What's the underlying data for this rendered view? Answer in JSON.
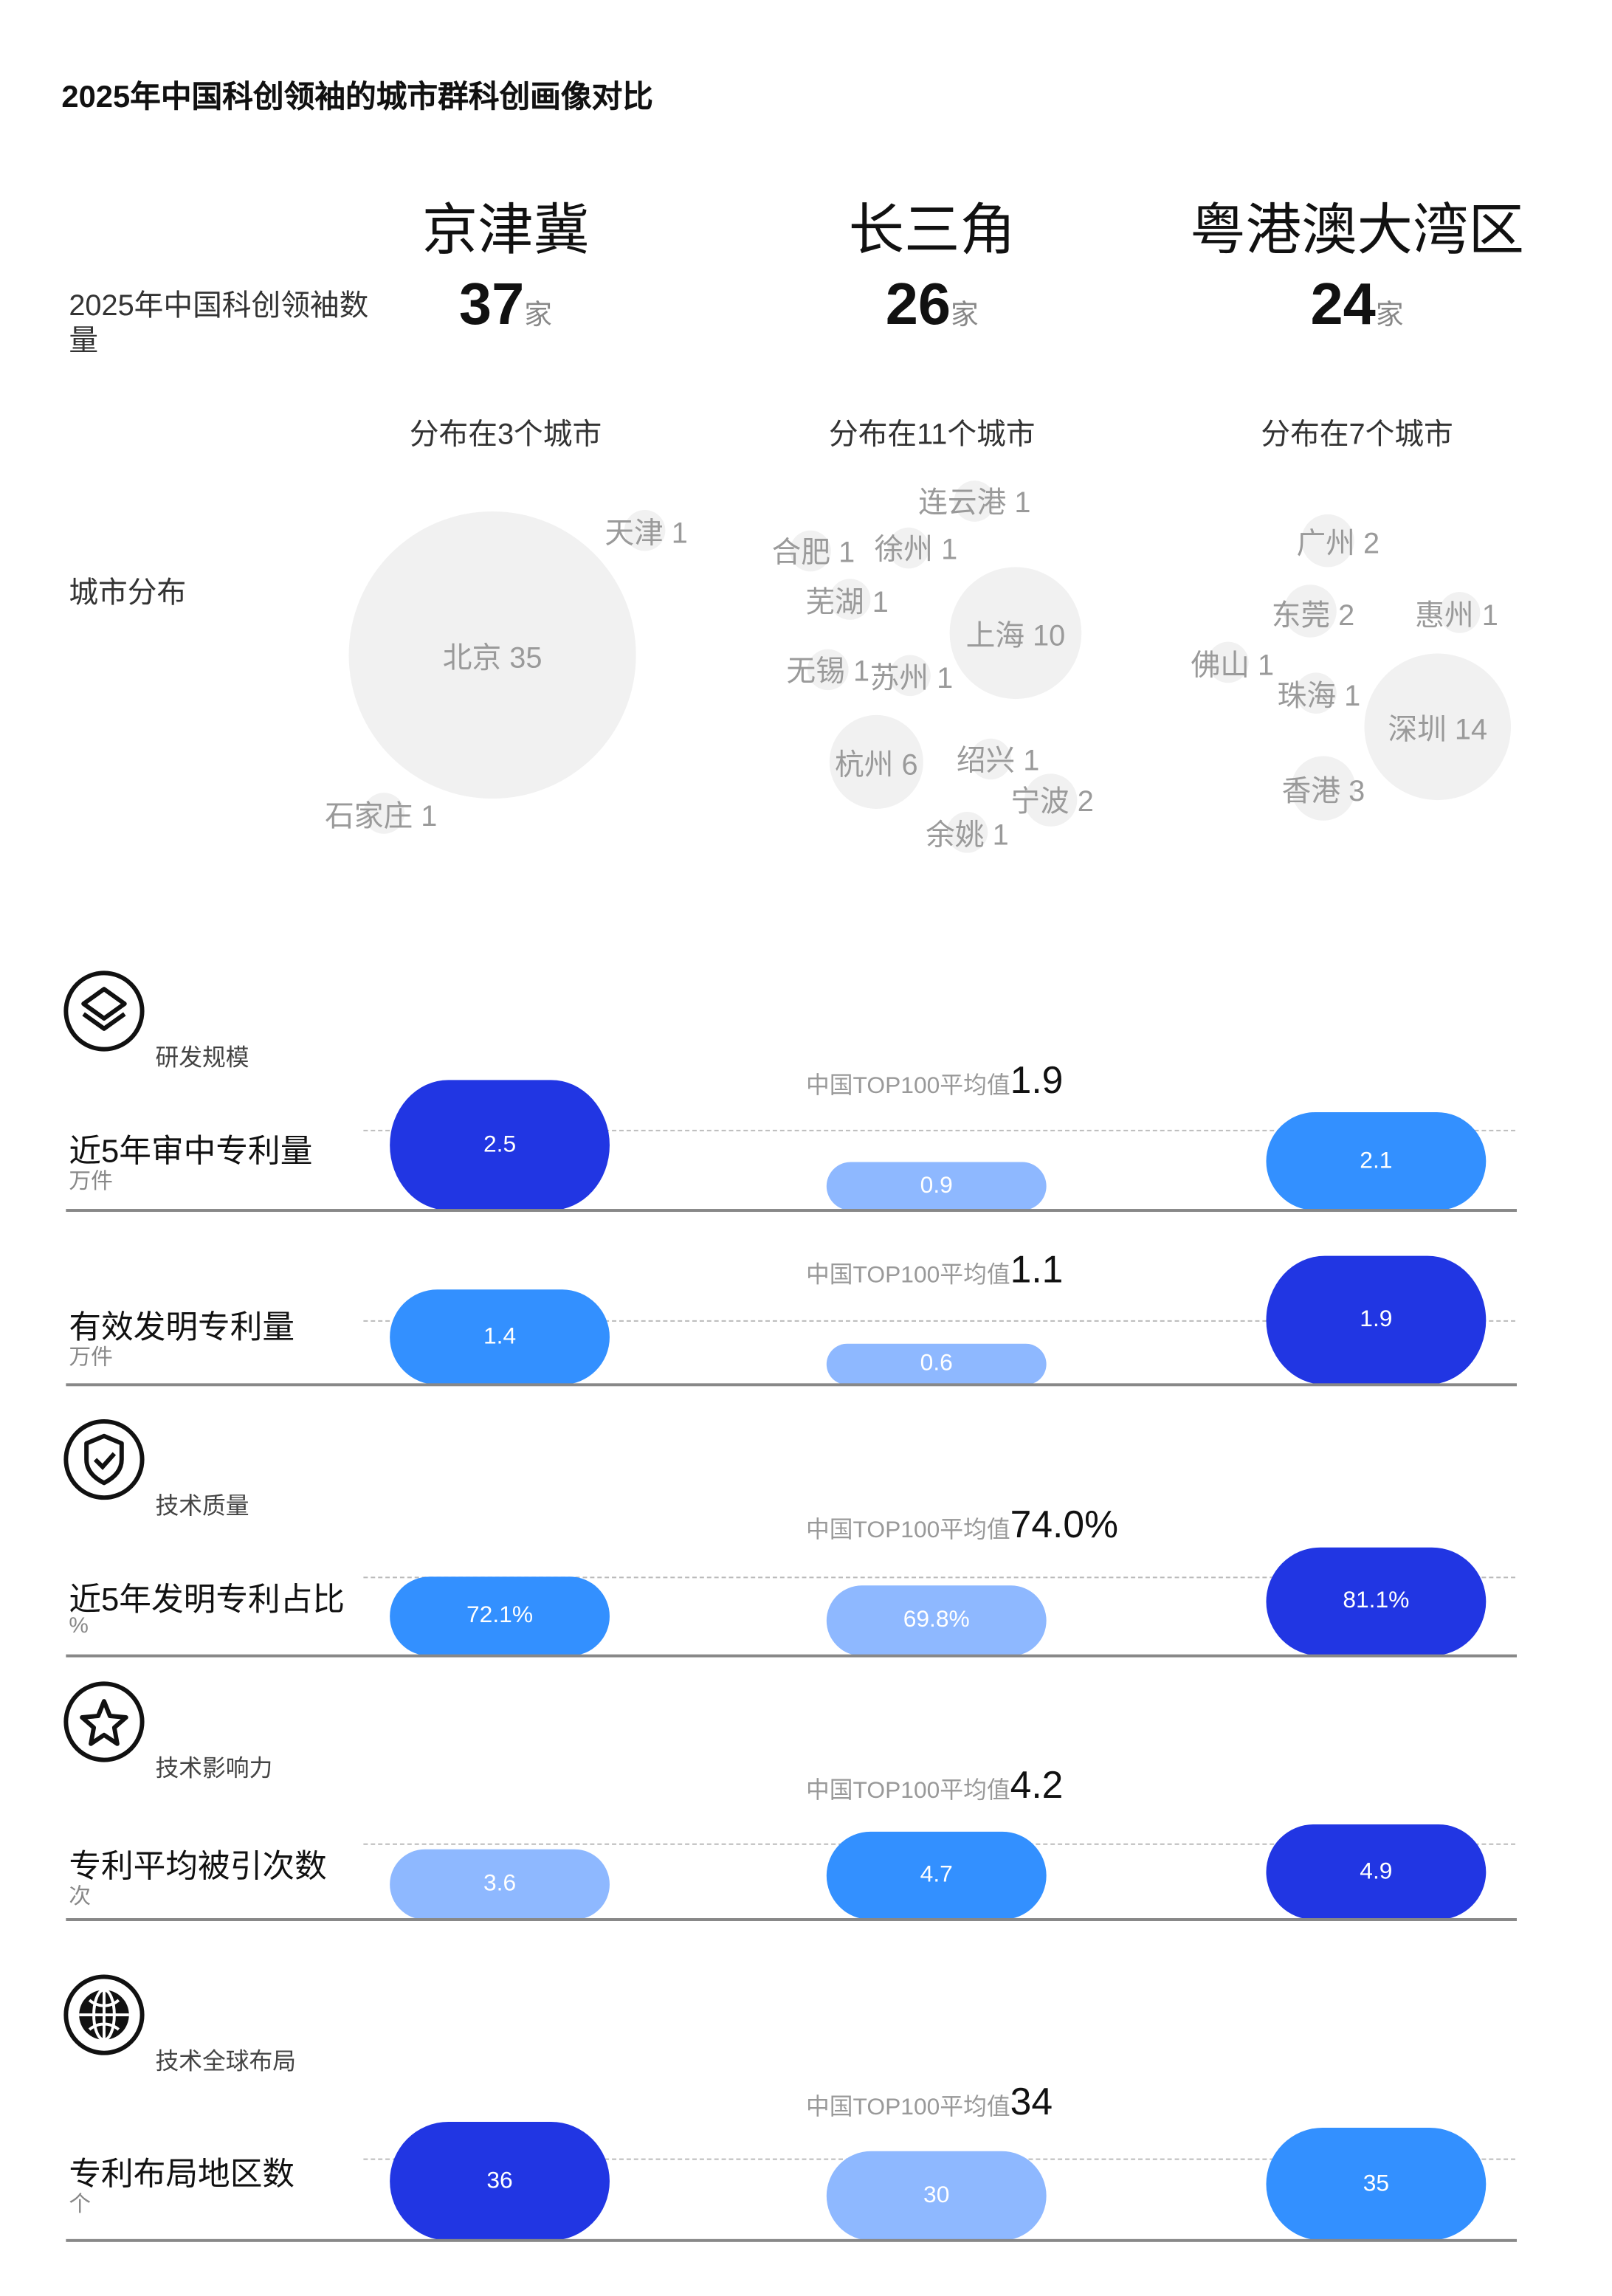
{
  "title": "2025年中国科创领袖的城市群科创画像对比",
  "row_labels": {
    "count": "2025年中国科创领袖数量",
    "distribution": "城市分布"
  },
  "regions": [
    {
      "name": "京津冀",
      "count": "37",
      "unit": "家",
      "summary": "分布在3个城市",
      "cities": [
        {
          "name": "北京",
          "value": 35
        },
        {
          "name": "天津",
          "value": 1
        },
        {
          "name": "石家庄",
          "value": 1
        }
      ]
    },
    {
      "name": "长三角",
      "count": "26",
      "unit": "家",
      "summary": "分布在11个城市",
      "cities": [
        {
          "name": "连云港",
          "value": 1
        },
        {
          "name": "合肥",
          "value": 1
        },
        {
          "name": "徐州",
          "value": 1
        },
        {
          "name": "芜湖",
          "value": 1
        },
        {
          "name": "上海",
          "value": 10
        },
        {
          "name": "无锡",
          "value": 1
        },
        {
          "name": "苏州",
          "value": 1
        },
        {
          "name": "杭州",
          "value": 6
        },
        {
          "name": "绍兴",
          "value": 1
        },
        {
          "name": "宁波",
          "value": 2
        },
        {
          "name": "余姚",
          "value": 1
        }
      ]
    },
    {
      "name": "粤港澳大湾区",
      "count": "24",
      "unit": "家",
      "summary": "分布在7个城市",
      "cities": [
        {
          "name": "广州",
          "value": 2
        },
        {
          "name": "东莞",
          "value": 2
        },
        {
          "name": "惠州",
          "value": 1
        },
        {
          "name": "佛山",
          "value": 1
        },
        {
          "name": "珠海",
          "value": 1
        },
        {
          "name": "深圳",
          "value": 14
        },
        {
          "name": "香港",
          "value": 3
        }
      ]
    }
  ],
  "avg_prefix": "中国TOP100平均值",
  "colors": {
    "highest": "#2136E3",
    "middle": "#3390FF",
    "lowest": "#8EB8FF",
    "bubble": "#F1F1F1"
  },
  "metrics": [
    {
      "category": "研发规模",
      "icon": "layers-icon",
      "title": "近5年审中专利量",
      "unit": "万件",
      "avg": "1.9",
      "values": [
        "2.5",
        "0.9",
        "2.1"
      ]
    },
    {
      "category": "",
      "icon": "",
      "title": "有效发明专利量",
      "unit": "万件",
      "avg": "1.1",
      "values": [
        "1.4",
        "0.6",
        "1.9"
      ]
    },
    {
      "category": "技术质量",
      "icon": "shield-check-icon",
      "title": "近5年发明专利占比",
      "unit": "%",
      "avg": "74.0%",
      "values": [
        "72.1%",
        "69.8%",
        "81.1%"
      ]
    },
    {
      "category": "技术影响力",
      "icon": "star-icon",
      "title": "专利平均被引次数",
      "unit": "次",
      "avg": "4.2",
      "values": [
        "3.6",
        "4.7",
        "4.9"
      ]
    },
    {
      "category": "技术全球布局",
      "icon": "globe-icon",
      "title": "专利布局地区数",
      "unit": "个",
      "avg": "34",
      "values": [
        "36",
        "30",
        "35"
      ]
    }
  ]
}
